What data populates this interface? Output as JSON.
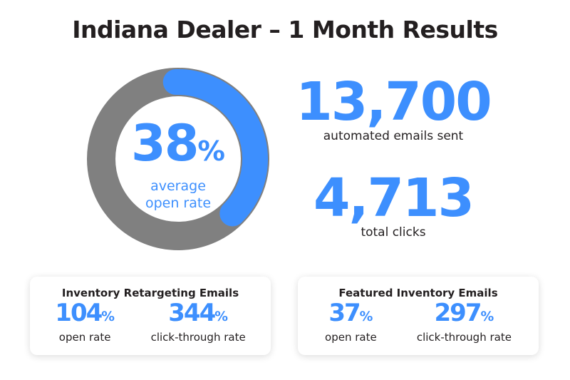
{
  "title": "Indiana Dealer – 1 Month Results",
  "colors": {
    "accent": "#3d8ffe",
    "track": "#808080"
  },
  "chart_data": {
    "type": "pie",
    "style": "donut",
    "values": [
      38,
      62
    ],
    "center_value": "38",
    "center_unit": "%",
    "center_label_line1": "average",
    "center_label_line2": "open rate"
  },
  "stats": [
    {
      "value": "13,700",
      "label": "automated emails sent"
    },
    {
      "value": "4,713",
      "label": "total clicks"
    }
  ],
  "cards": [
    {
      "title": "Inventory Retargeting Emails",
      "metrics": [
        {
          "value": "104",
          "unit": "%",
          "label": "open rate"
        },
        {
          "value": "344",
          "unit": "%",
          "label": "click-through rate"
        }
      ]
    },
    {
      "title": "Featured Inventory Emails",
      "metrics": [
        {
          "value": "37",
          "unit": "%",
          "label": "open rate"
        },
        {
          "value": "297",
          "unit": "%",
          "label": "click-through rate"
        }
      ]
    }
  ]
}
